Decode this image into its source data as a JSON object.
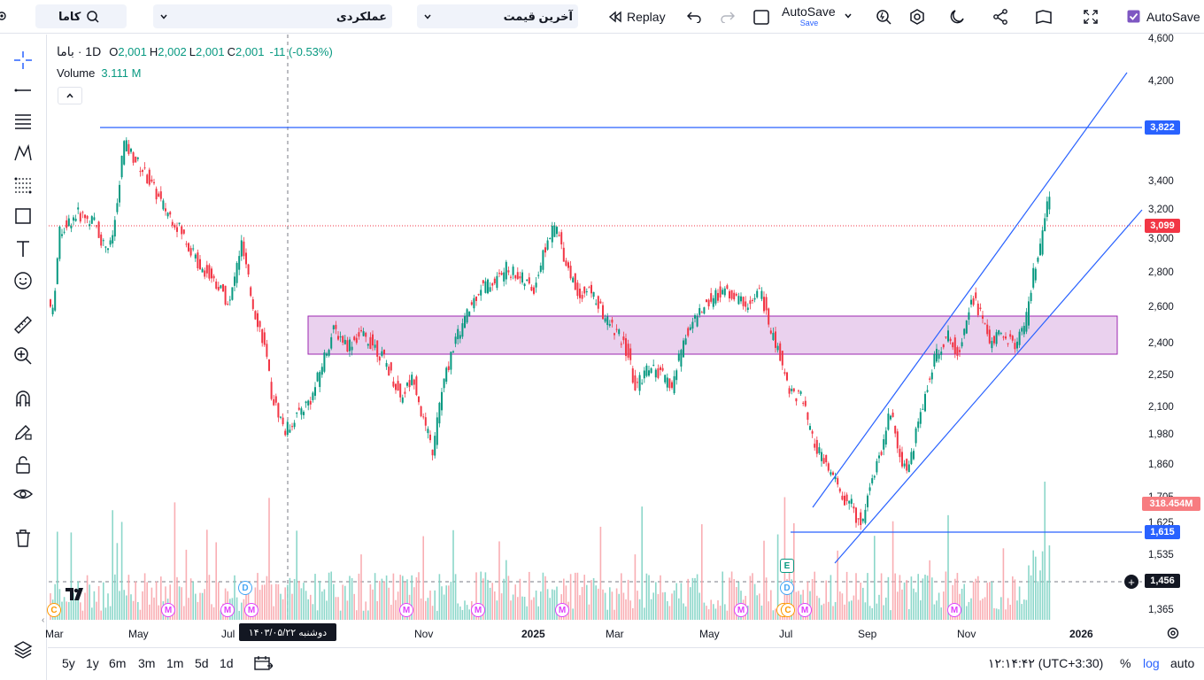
{
  "topbar": {
    "symbol": "کاما",
    "indicator_select": "عملکردی",
    "price_type_select": "آخرین قیمت",
    "replay_label": "Replay",
    "autosave_label": "AutoSave",
    "autosave_sub": "Save",
    "autosave_right_label": "AutoSave"
  },
  "legend": {
    "symbol": "باما",
    "sep": "·",
    "interval": "1D",
    "open_label": "O",
    "open_value": "2,001",
    "high_label": "H",
    "high_value": "2,002",
    "low_label": "L",
    "low_value": "2,001",
    "close_label": "C",
    "close_value": "2,001",
    "change": "-11 (-0.53%)",
    "volume_label": "Volume",
    "volume_value": "3.111 M"
  },
  "price_axis": {
    "ticks": [
      "4,600",
      "4,200",
      "3,400",
      "3,200",
      "3,000",
      "2,800",
      "2,600",
      "2,400",
      "2,250",
      "2,100",
      "1,980",
      "1,860",
      "1,705",
      "1,625",
      "1,535",
      "1,365"
    ],
    "tag_3822": "3,822",
    "tag_3099": "3,099",
    "tag_volume": "318.454M",
    "tag_1615": "1,615",
    "tag_crosshair": "1,456",
    "crosshair_plus": "+"
  },
  "time_axis": {
    "labels": [
      "Mar",
      "May",
      "Jul",
      "Nov",
      "2025",
      "Mar",
      "May",
      "Jul",
      "Sep",
      "Nov",
      "2026"
    ],
    "crosshair_date": "دوشنبه ۱۴۰۳/۰۵/۲۲"
  },
  "events": {
    "c": "C",
    "m": "M",
    "d": "D",
    "e": "E"
  },
  "bottombar": {
    "timeframes": [
      "5y",
      "1y",
      "6m",
      "3m",
      "1m",
      "5d",
      "1d"
    ],
    "clock": "۱۲:۱۴:۴۲ (UTC+3:30)",
    "percent": "%",
    "log": "log",
    "auto": "auto"
  },
  "colors": {
    "up": "#089981",
    "down": "#f23645",
    "drawing": "#2962ff",
    "zone_fill": "#e1bee7",
    "zone_border": "#9c27b0",
    "price_red": "#f23645"
  }
}
